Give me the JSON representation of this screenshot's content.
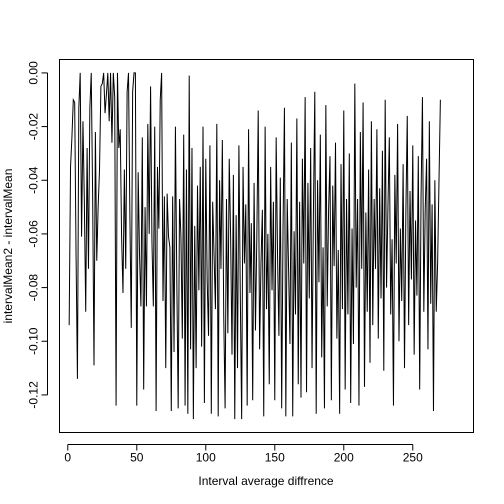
{
  "chart_data": {
    "type": "line",
    "xlabel": "Interval average diffrence",
    "ylabel": "intervalMean2 - intervalMean",
    "xlim": [
      -6,
      294
    ],
    "ylim": [
      -0.134,
      0.005
    ],
    "xticks": [
      0,
      50,
      100,
      150,
      200,
      250
    ],
    "xtick_labels": [
      "0",
      "50",
      "100",
      "150",
      "200",
      "250"
    ],
    "yticks": [
      -0.12,
      -0.1,
      -0.08,
      -0.06,
      -0.04,
      -0.02,
      0.0
    ],
    "ytick_labels": [
      "-0.12",
      "-0.10",
      "-0.08",
      "-0.06",
      "-0.04",
      "-0.02",
      "0.00"
    ],
    "grid": false,
    "series": [
      {
        "x_start": 1,
        "x_step": 1,
        "values": [
          -0.094,
          -0.035,
          -0.024,
          -0.01,
          -0.011,
          -0.068,
          -0.114,
          -0.013,
          0.0,
          -0.061,
          -0.018,
          -0.048,
          -0.089,
          -0.028,
          -0.073,
          -0.013,
          0.0,
          -0.045,
          -0.109,
          -0.022,
          -0.07,
          -0.05,
          -0.036,
          -0.005,
          -0.004,
          0.0,
          -0.015,
          -0.008,
          0.0,
          -0.018,
          0.0,
          -0.026,
          0.0,
          -0.009,
          -0.124,
          0.0,
          -0.028,
          -0.021,
          -0.061,
          -0.082,
          -0.036,
          -0.073,
          -0.007,
          0.0,
          -0.053,
          -0.095,
          -0.007,
          0.0,
          0.0,
          -0.124,
          -0.037,
          -0.068,
          -0.087,
          -0.024,
          -0.118,
          -0.05,
          -0.087,
          -0.019,
          -0.06,
          -0.005,
          -0.063,
          -0.087,
          -0.02,
          -0.126,
          -0.035,
          -0.058,
          -0.01,
          0.0,
          -0.085,
          -0.046,
          -0.11,
          -0.045,
          -0.061,
          -0.065,
          -0.126,
          -0.046,
          -0.104,
          -0.02,
          -0.077,
          -0.125,
          -0.047,
          -0.061,
          -0.099,
          -0.023,
          -0.124,
          -0.036,
          -0.127,
          -0.001,
          -0.103,
          -0.028,
          -0.129,
          -0.057,
          -0.11,
          -0.042,
          -0.081,
          -0.035,
          -0.102,
          -0.02,
          -0.123,
          -0.032,
          -0.077,
          -0.098,
          -0.027,
          -0.127,
          -0.048,
          -0.068,
          -0.088,
          -0.019,
          -0.128,
          -0.04,
          -0.073,
          -0.025,
          -0.09,
          -0.125,
          -0.047,
          -0.097,
          -0.032,
          -0.061,
          -0.105,
          -0.038,
          -0.129,
          -0.053,
          -0.11,
          -0.027,
          -0.082,
          -0.129,
          -0.035,
          -0.071,
          -0.049,
          -0.124,
          -0.021,
          -0.082,
          -0.056,
          -0.122,
          -0.041,
          -0.096,
          -0.061,
          -0.014,
          -0.103,
          -0.071,
          -0.051,
          -0.128,
          -0.02,
          -0.088,
          -0.06,
          -0.116,
          -0.035,
          -0.081,
          -0.048,
          -0.122,
          -0.024,
          -0.068,
          -0.098,
          -0.039,
          -0.125,
          -0.057,
          -0.013,
          -0.128,
          -0.047,
          -0.073,
          -0.101,
          -0.026,
          -0.128,
          -0.059,
          -0.09,
          -0.017,
          -0.116,
          -0.048,
          -0.121,
          -0.032,
          -0.071,
          -0.009,
          -0.119,
          -0.041,
          -0.084,
          -0.028,
          -0.11,
          -0.052,
          -0.007,
          -0.127,
          -0.04,
          -0.078,
          -0.023,
          -0.106,
          -0.065,
          -0.125,
          -0.012,
          -0.087,
          -0.051,
          -0.031,
          -0.122,
          -0.042,
          -0.072,
          -0.026,
          -0.099,
          -0.066,
          -0.127,
          -0.034,
          -0.088,
          -0.014,
          -0.118,
          -0.047,
          -0.09,
          -0.03,
          -0.123,
          -0.058,
          -0.101,
          -0.004,
          -0.08,
          -0.047,
          -0.124,
          -0.022,
          -0.073,
          -0.011,
          -0.117,
          -0.052,
          -0.089,
          -0.036,
          -0.108,
          -0.018,
          -0.094,
          -0.047,
          -0.073,
          -0.021,
          -0.099,
          -0.043,
          -0.084,
          -0.029,
          -0.111,
          -0.01,
          -0.08,
          -0.05,
          -0.024,
          -0.09,
          -0.062,
          -0.124,
          -0.038,
          -0.071,
          -0.019,
          -0.1,
          -0.058,
          -0.085,
          -0.034,
          -0.11,
          -0.052,
          -0.016,
          -0.094,
          -0.044,
          -0.077,
          -0.027,
          -0.105,
          -0.055,
          -0.083,
          -0.031,
          -0.118,
          -0.046,
          -0.009,
          -0.089,
          -0.051,
          -0.032,
          -0.103,
          -0.018,
          -0.086,
          -0.049,
          -0.126,
          -0.04,
          -0.089,
          -0.071,
          -0.04,
          -0.01
        ]
      }
    ]
  }
}
